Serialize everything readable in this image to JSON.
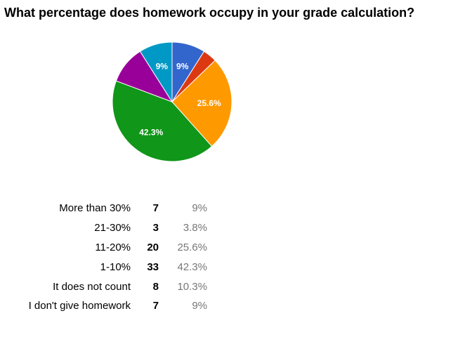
{
  "chart_data": {
    "type": "pie",
    "title": "What percentage does homework occupy in your grade calculation?",
    "categories": [
      "More than 30%",
      "21-30%",
      "11-20%",
      "1-10%",
      "It does not count",
      "I don't give homework"
    ],
    "counts": [
      7,
      3,
      20,
      33,
      8,
      7
    ],
    "percent_labels": [
      "9%",
      "3.8%",
      "25.6%",
      "42.3%",
      "10.3%",
      "9%"
    ],
    "values": [
      9,
      3.8,
      25.6,
      42.3,
      10.3,
      9
    ],
    "colors": [
      "#3366cc",
      "#dc3912",
      "#ff9900",
      "#109618",
      "#990099",
      "#0099c6"
    ],
    "slice_labels": [
      "9%",
      "",
      "25.6%",
      "42.3%",
      "",
      "9%"
    ],
    "legend": "none"
  }
}
